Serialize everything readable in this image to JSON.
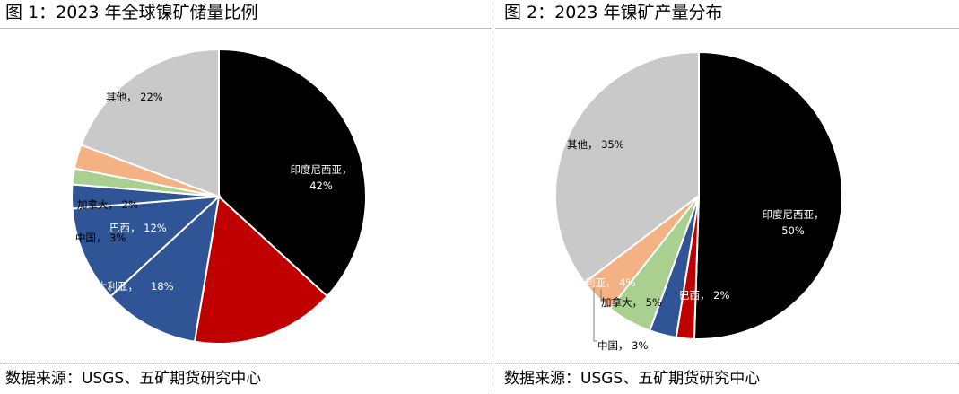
{
  "panels": [
    {
      "title": "图 1：2023 年全球镍矿储量比例",
      "source": "数据来源：USGS、五矿期货研究中心"
    },
    {
      "title": "图 2：2023 年镍矿产量分布",
      "source": "数据来源：USGS、五矿期货研究中心"
    }
  ],
  "chart_data": [
    {
      "type": "pie",
      "title": "图 1：2023 年全球镍矿储量比例",
      "unit": "%",
      "slices": [
        {
          "label": "印度尼西亚，",
          "value": 42,
          "value_text": "42%",
          "color": "#000000"
        },
        {
          "label": "",
          "value": 18,
          "value_text": "18%",
          "color": "#c00000"
        },
        {
          "label": "大利亚，",
          "value": 12,
          "value_text": "",
          "color": "#2f5597"
        },
        {
          "label": "巴西，",
          "value": 12,
          "value_text": "12%",
          "color": "#2f5597"
        },
        {
          "label": "中国，",
          "value": 3,
          "value_text": "3%",
          "color": "#2f5597"
        },
        {
          "label": "加拿大，",
          "value": 2,
          "value_text": "2%",
          "color": "#a9d08e"
        },
        {
          "label": "",
          "value": 3,
          "value_text": "",
          "color": "#f4b183"
        },
        {
          "label": "其他，",
          "value": 22,
          "value_text": "22%",
          "color": "#c9c9c9"
        }
      ]
    },
    {
      "type": "pie",
      "title": "图 2：2023 年镍矿产量分布",
      "unit": "%",
      "slices": [
        {
          "label": "印度尼西亚，",
          "value": 50,
          "value_text": "50%",
          "color": "#000000"
        },
        {
          "label": "巴西，",
          "value": 2,
          "value_text": "2%",
          "color": "#c00000"
        },
        {
          "label": "中国，",
          "value": 3,
          "value_text": "3%",
          "color": "#2f5597"
        },
        {
          "label": "加拿大，",
          "value": 5,
          "value_text": "5%",
          "color": "#a9d08e"
        },
        {
          "label": "利亚，",
          "value": 4,
          "value_text": "4%",
          "color": "#f4b183"
        },
        {
          "label": "其他，",
          "value": 35,
          "value_text": "35%",
          "color": "#c9c9c9"
        }
      ]
    }
  ]
}
